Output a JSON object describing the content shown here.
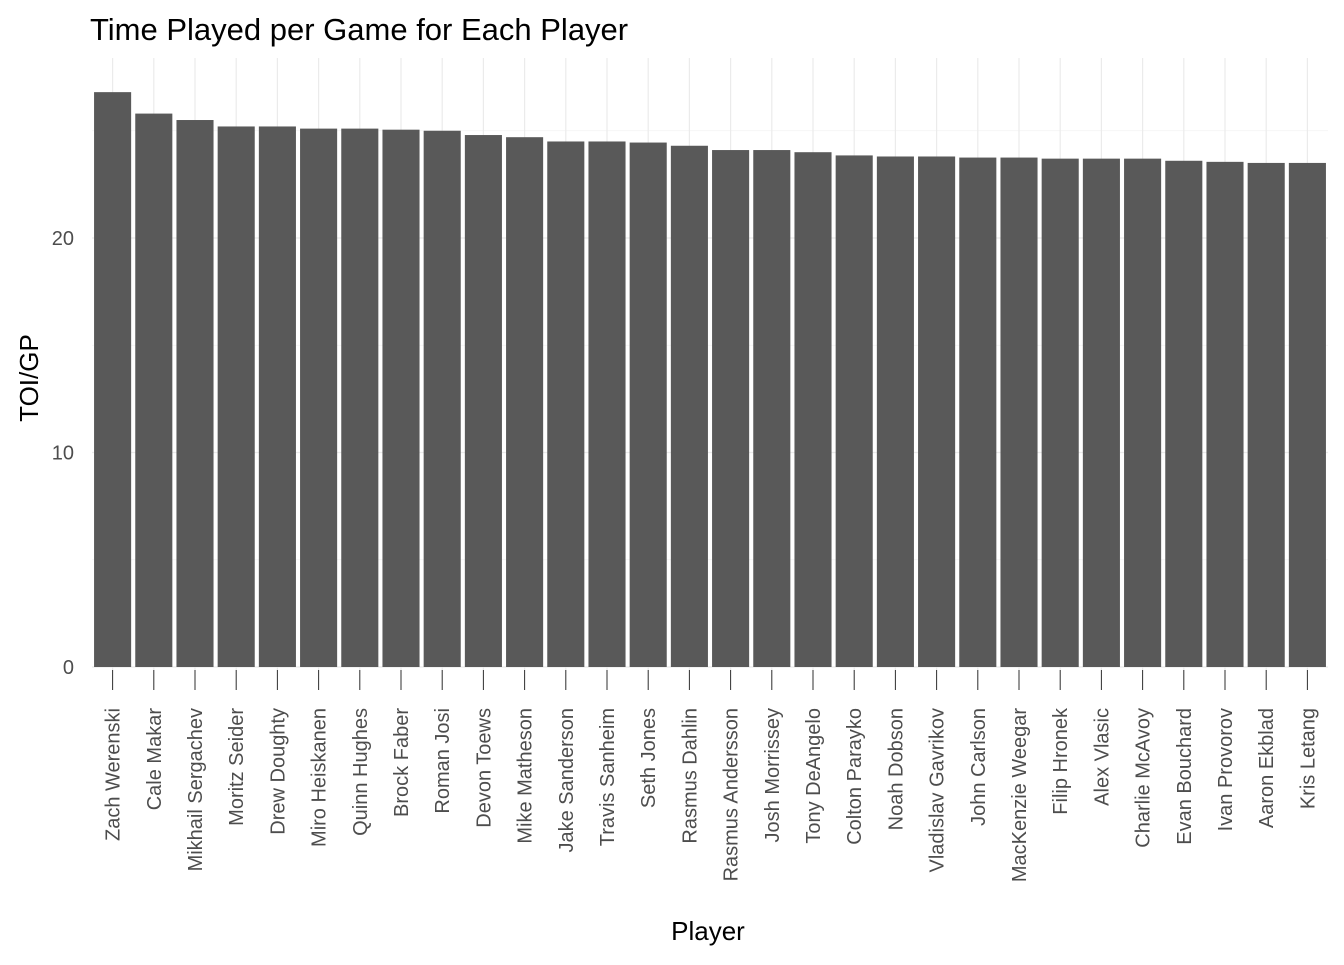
{
  "chart_data": {
    "type": "bar",
    "title": "Time Played per Game for Each Player",
    "xlabel": "Player",
    "ylabel": "TOI/GP",
    "ylim": [
      0,
      27
    ],
    "yticks": [
      0,
      10,
      20
    ],
    "grid": true,
    "categories": [
      "Zach Werenski",
      "Cale Makar",
      "Mikhail Sergachev",
      "Moritz Seider",
      "Drew Doughty",
      "Miro Heiskanen",
      "Quinn Hughes",
      "Brock Faber",
      "Roman Josi",
      "Devon Toews",
      "Mike Matheson",
      "Jake Sanderson",
      "Travis Sanheim",
      "Seth Jones",
      "Rasmus Dahlin",
      "Rasmus Andersson",
      "Josh Morrissey",
      "Tony DeAngelo",
      "Colton Parayko",
      "Noah Dobson",
      "Vladislav Gavrikov",
      "John Carlson",
      "MacKenzie Weegar",
      "Filip Hronek",
      "Alex Vlasic",
      "Charlie McAvoy",
      "Evan Bouchard",
      "Ivan Provorov",
      "Aaron Ekblad",
      "Kris Letang"
    ],
    "values": [
      26.8,
      25.8,
      25.5,
      25.2,
      25.2,
      25.1,
      25.1,
      25.05,
      25.0,
      24.8,
      24.7,
      24.5,
      24.5,
      24.45,
      24.3,
      24.1,
      24.1,
      24.0,
      23.85,
      23.8,
      23.8,
      23.75,
      23.75,
      23.7,
      23.7,
      23.7,
      23.6,
      23.55,
      23.5,
      23.5
    ],
    "colors": {
      "bar": "#595959",
      "grid": "#ebebeb",
      "background": "#ffffff"
    }
  }
}
